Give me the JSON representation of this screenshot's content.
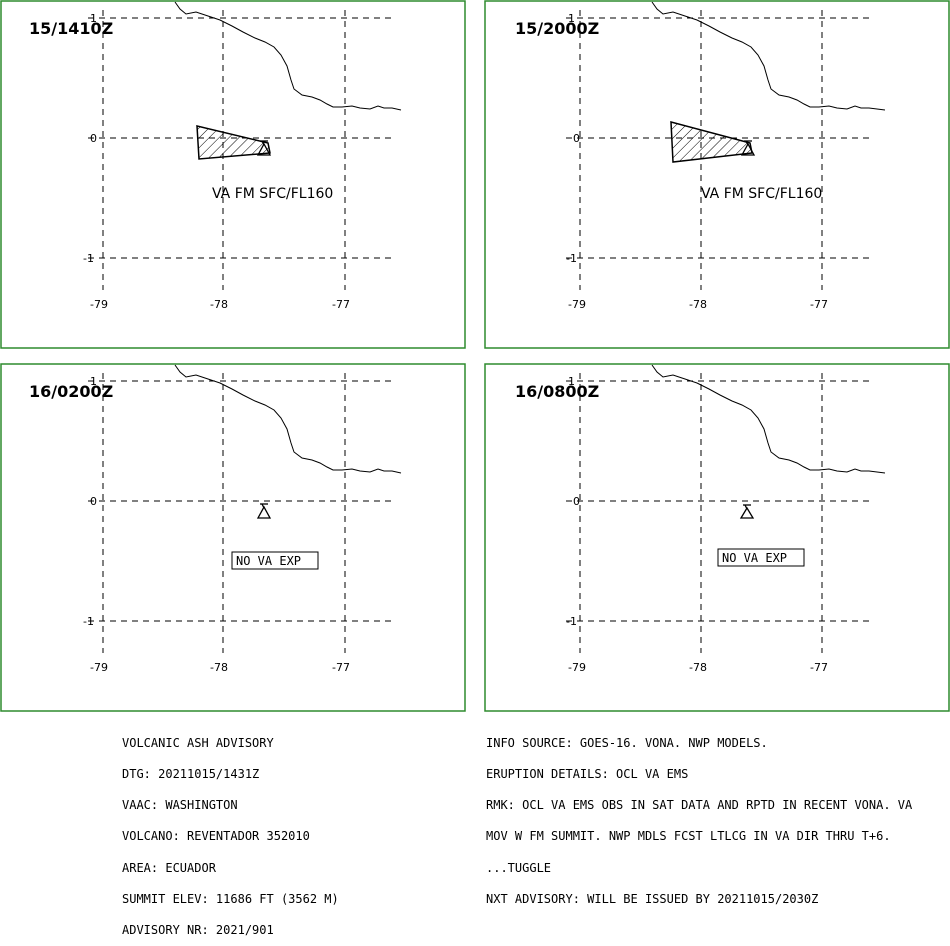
{
  "panels": [
    {
      "time": "15/1410Z",
      "va_label": "VA FM SFC/FL160",
      "has_ash": true
    },
    {
      "time": "15/2000Z",
      "va_label": "VA FM SFC/FL160",
      "has_ash": true
    },
    {
      "time": "16/0200Z",
      "va_label": "NO VA EXP",
      "has_ash": false
    },
    {
      "time": "16/0800Z",
      "va_label": "NO VA EXP",
      "has_ash": false
    }
  ],
  "axes": {
    "lon_ticks": [
      "-79",
      "-78",
      "-77"
    ],
    "lat_ticks": [
      "1",
      "0",
      "-1"
    ]
  },
  "advisory_left": [
    "VOLCANIC ASH ADVISORY",
    "DTG: 20211015/1431Z",
    "VAAC: WASHINGTON",
    "VOLCANO: REVENTADOR 352010",
    "AREA: ECUADOR",
    "SUMMIT ELEV: 11686 FT (3562 M)",
    "ADVISORY NR: 2021/901"
  ],
  "advisory_right": [
    "INFO SOURCE: GOES-16. VONA. NWP MODELS.",
    "ERUPTION DETAILS: OCL VA EMS",
    "RMK: OCL VA EMS OBS IN SAT DATA AND RPTD IN RECENT VONA. VA",
    "MOV W FM SUMMIT. NWP MDLS FCST LTLCG IN VA DIR THRU T+6.",
    "...TUGGLE",
    "NXT ADVISORY: WILL BE ISSUED BY 20211015/2030Z"
  ],
  "colors": {
    "frame": "#2e8b2e",
    "ink": "#000000"
  }
}
